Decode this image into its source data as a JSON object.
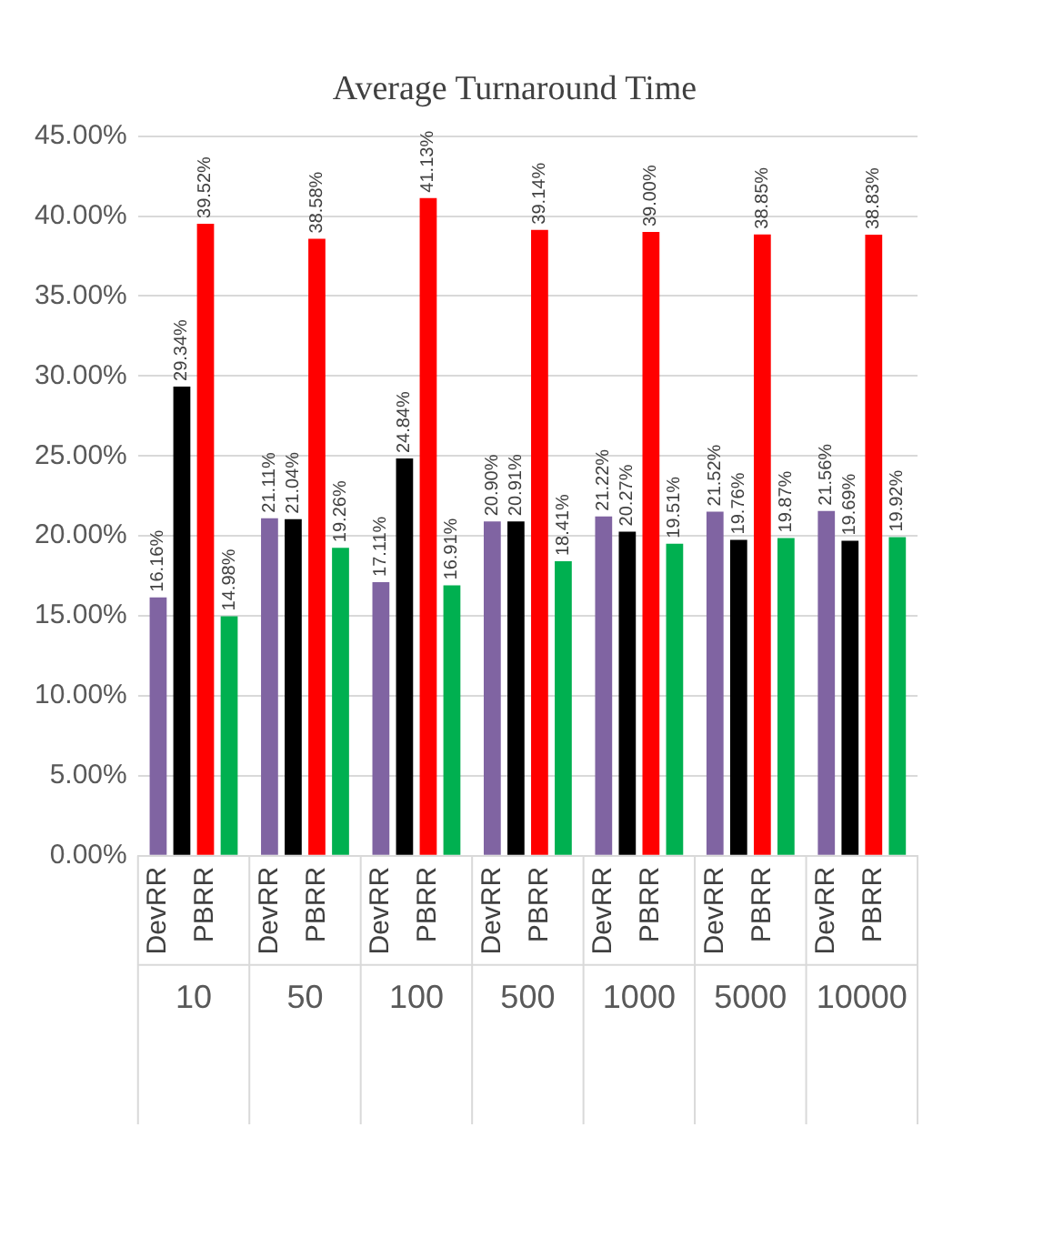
{
  "chart_data": {
    "type": "bar",
    "title": "Average Turnaround Time",
    "categories": [
      "10",
      "50",
      "100",
      "500",
      "1000",
      "5000",
      "10000"
    ],
    "series": [
      {
        "name": "DevRR",
        "color": "#8064a2",
        "values": [
          16.16,
          21.11,
          17.11,
          20.9,
          21.22,
          21.52,
          21.56
        ],
        "value_labels": [
          "16.16%",
          "21.11%",
          "17.11%",
          "20.90%",
          "21.22%",
          "21.52%",
          "21.56%"
        ]
      },
      {
        "color": "#000000",
        "values": [
          29.34,
          21.04,
          24.84,
          20.91,
          20.27,
          19.76,
          19.69
        ],
        "value_labels": [
          "29.34%",
          "21.04%",
          "24.84%",
          "20.91%",
          "20.27%",
          "19.76%",
          "19.69%"
        ]
      },
      {
        "name": "PBRR",
        "color": "#ff0000",
        "values": [
          39.52,
          38.58,
          41.13,
          39.14,
          39.0,
          38.85,
          38.83
        ],
        "value_labels": [
          "39.52%",
          "38.58%",
          "41.13%",
          "39.14%",
          "39.00%",
          "38.85%",
          "38.83%"
        ]
      },
      {
        "color": "#00b050",
        "values": [
          14.98,
          19.26,
          16.91,
          18.41,
          19.51,
          19.87,
          19.92
        ],
        "value_labels": [
          "14.98%",
          "19.26%",
          "16.91%",
          "18.41%",
          "19.51%",
          "19.87%",
          "19.92%"
        ]
      }
    ],
    "ylim": [
      0,
      45
    ],
    "yticks": [
      {
        "value": 0,
        "label": "0.00%"
      },
      {
        "value": 5,
        "label": "5.00%"
      },
      {
        "value": 10,
        "label": "10.00%"
      },
      {
        "value": 15,
        "label": "15.00%"
      },
      {
        "value": 20,
        "label": "20.00%"
      },
      {
        "value": 25,
        "label": "25.00%"
      },
      {
        "value": 30,
        "label": "30.00%"
      },
      {
        "value": 35,
        "label": "35.00%"
      },
      {
        "value": 40,
        "label": "40.00%"
      },
      {
        "value": 45,
        "label": "45.00%"
      }
    ],
    "grid": "y",
    "legend": false
  }
}
